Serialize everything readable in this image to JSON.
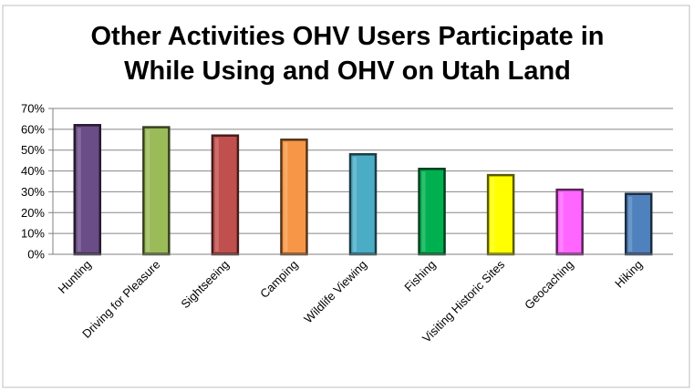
{
  "chart_data": {
    "type": "bar",
    "title_lines": [
      "Other Activities OHV Users Participate in",
      "While Using and OHV on Utah Land"
    ],
    "categories": [
      "Hunting",
      "Driving for Pleasure",
      "Sightseeing",
      "Camping",
      "Wildlife Viewing",
      "Fishing",
      "Visiting Historic Sites",
      "Geocaching",
      "Hiking"
    ],
    "values": [
      62,
      61,
      57,
      55,
      48,
      41,
      38,
      31,
      29
    ],
    "colors": [
      "#6a4c86",
      "#9bbb59",
      "#c0504d",
      "#f79646",
      "#4bacc6",
      "#00b050",
      "#ffff00",
      "#ff66ff",
      "#4f81bd"
    ],
    "yticks": [
      "0%",
      "10%",
      "20%",
      "30%",
      "40%",
      "50%",
      "60%",
      "70%"
    ],
    "ylim": [
      0,
      70
    ],
    "grid": true,
    "legend": "none"
  }
}
